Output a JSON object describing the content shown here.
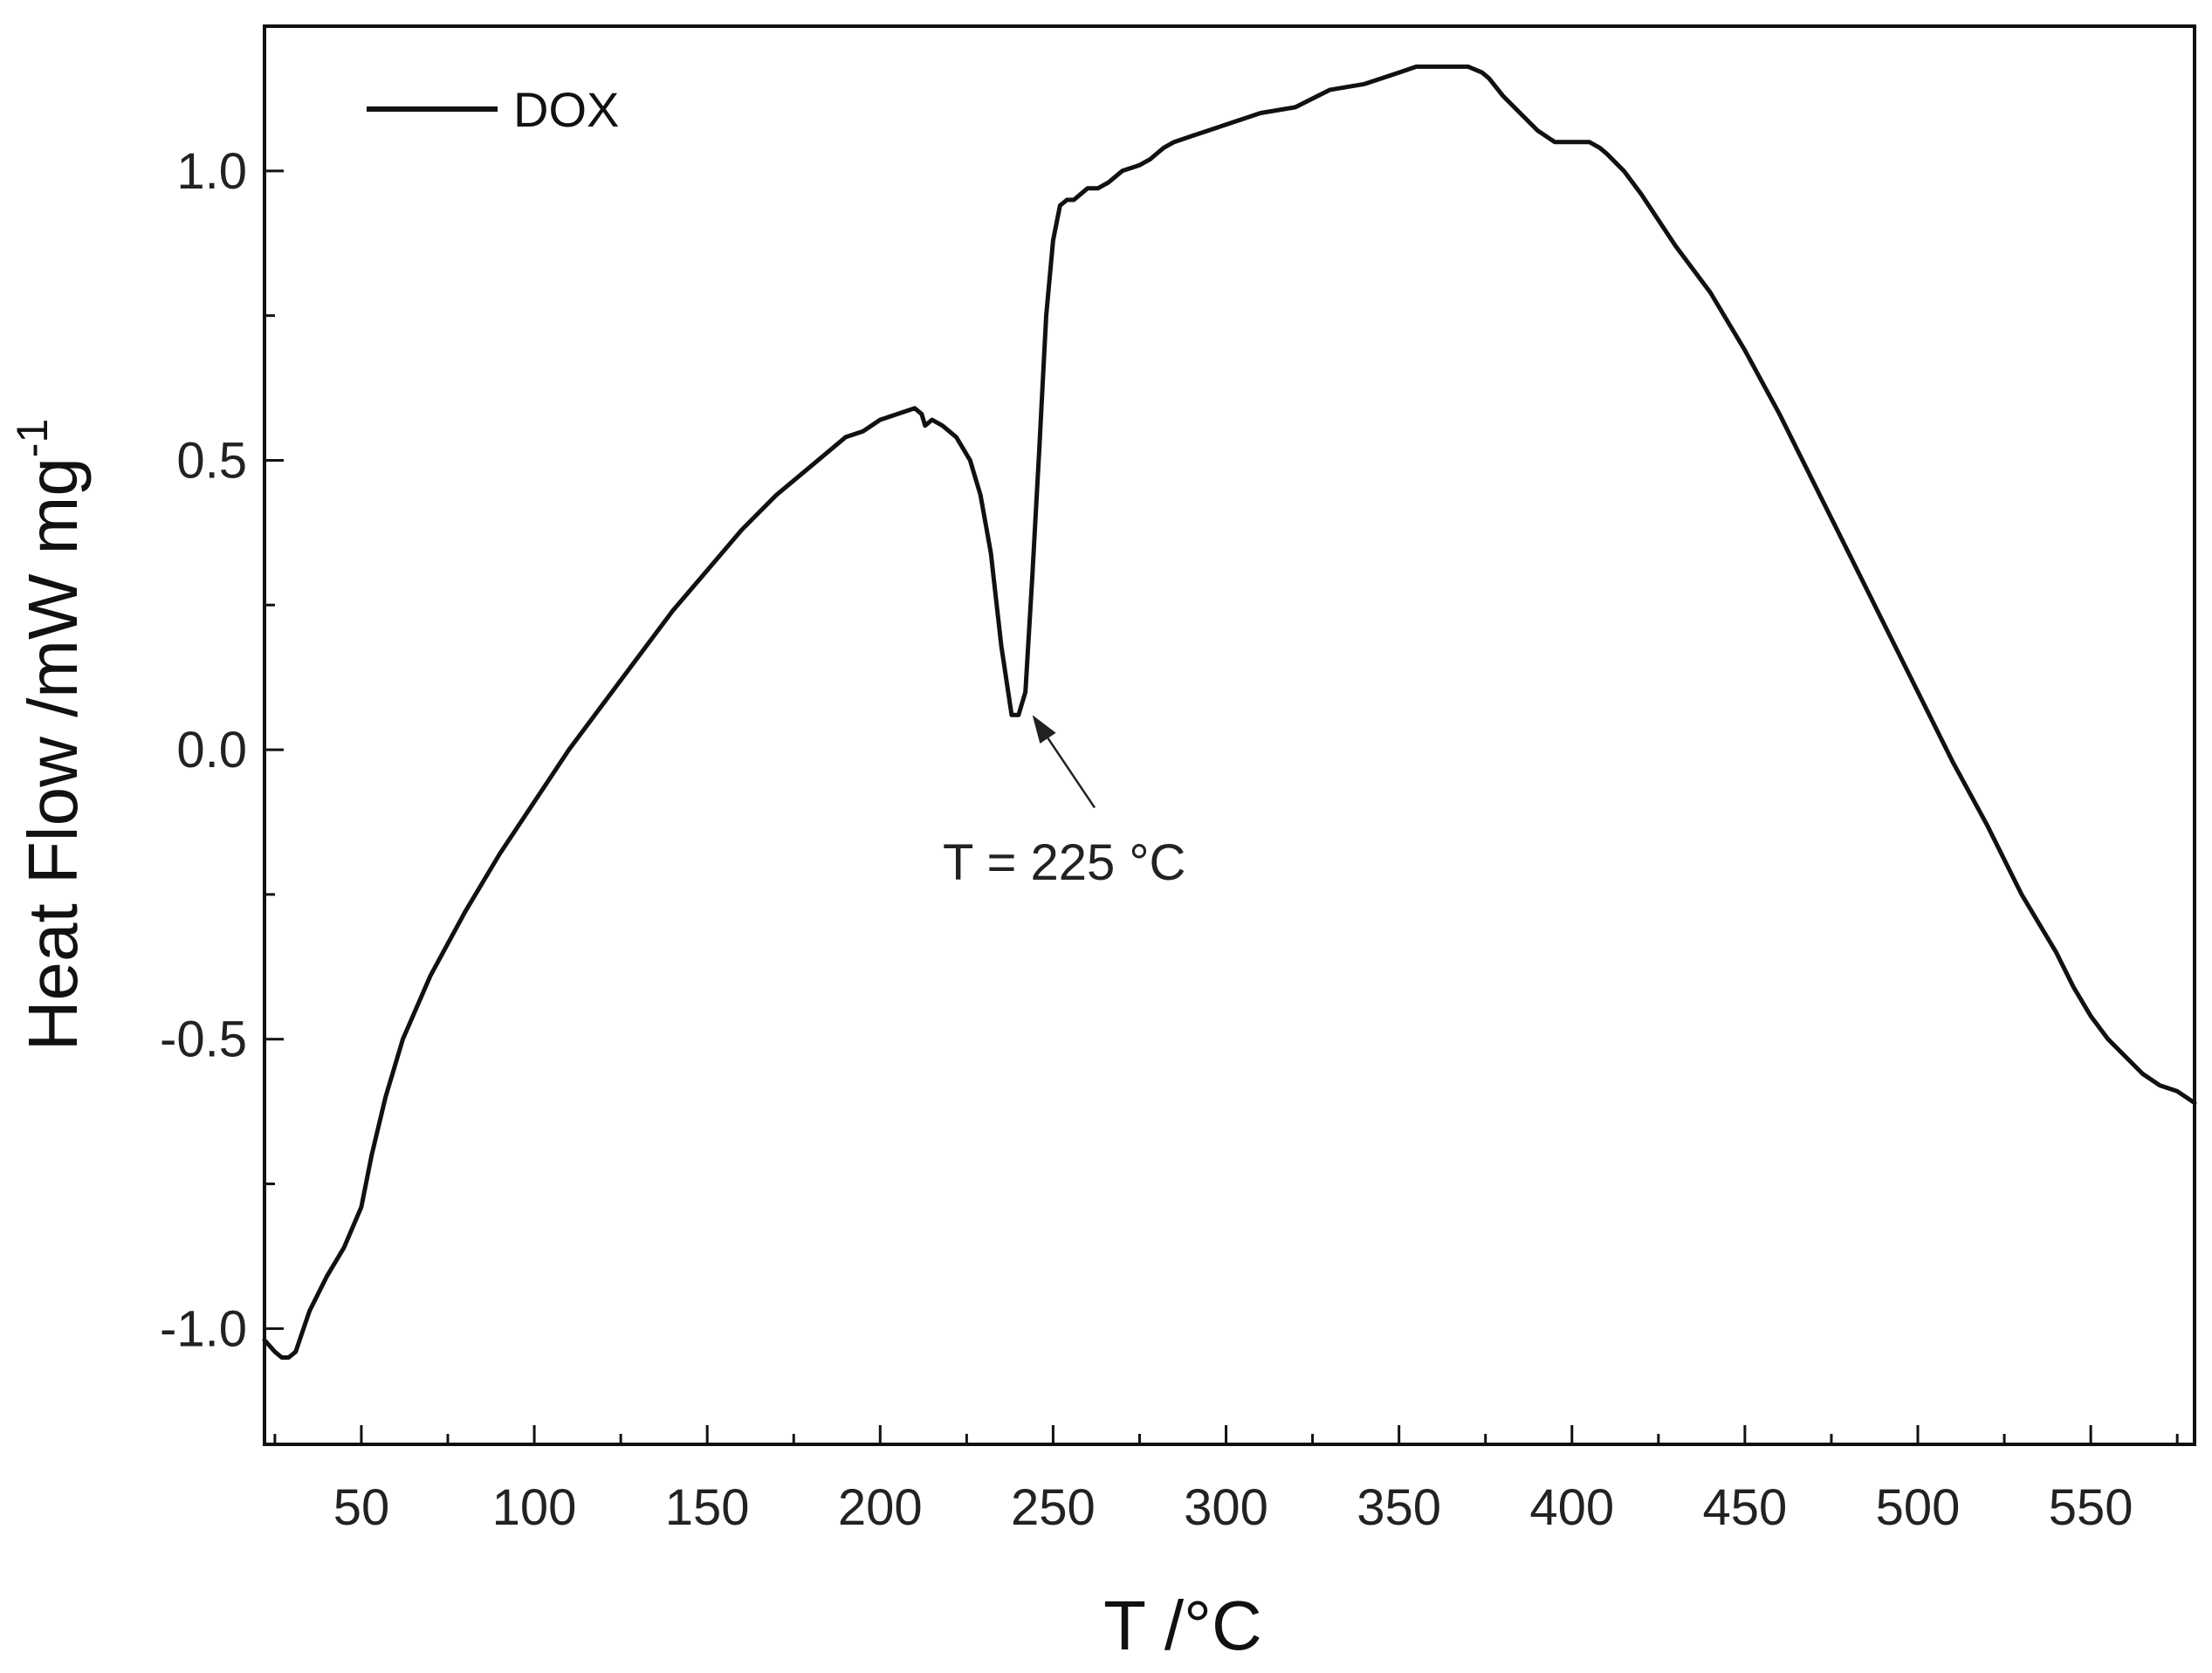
{
  "chart_data": {
    "type": "line",
    "title": "",
    "xlabel": "T /°C",
    "ylabel": "Heat Flow /mW mg",
    "ylabel_superscript": "-1",
    "xlim": [
      22,
      580
    ],
    "ylim": [
      -1.2,
      1.25
    ],
    "x_ticks": [
      50,
      100,
      150,
      200,
      250,
      300,
      350,
      400,
      450,
      500,
      550
    ],
    "x_tick_labels": [
      "50",
      "100",
      "150",
      "200",
      "250",
      "300",
      "350",
      "400",
      "450",
      "500",
      "550"
    ],
    "x_minor_ticks": [
      25,
      75,
      125,
      175,
      225,
      275,
      325,
      375,
      425,
      475,
      525,
      575
    ],
    "y_ticks": [
      -1.0,
      -0.5,
      0.0,
      0.5,
      1.0
    ],
    "y_tick_labels": [
      "-1.0",
      "-0.5",
      "0.0",
      "0.5",
      "1.0"
    ],
    "y_minor_ticks": [
      -0.75,
      -0.25,
      0.25,
      0.75
    ],
    "grid": false,
    "legend": {
      "position": "top-left",
      "entries": [
        "DOX"
      ]
    },
    "line_color": "#111111",
    "annotation": {
      "text": "T = 225 °C",
      "arrow_target": [
        244,
        0.06
      ],
      "arrow_tail": [
        262,
        -0.1
      ]
    },
    "series": [
      {
        "name": "DOX",
        "x": [
          22,
          25,
          27,
          29,
          31,
          35,
          40,
          45,
          50,
          53,
          57,
          62,
          70,
          80,
          90,
          100,
          110,
          120,
          130,
          140,
          150,
          160,
          170,
          180,
          190,
          195,
          200,
          205,
          210,
          212,
          213,
          215,
          218,
          222,
          226,
          229,
          232,
          235,
          238,
          240,
          242,
          244,
          246,
          248,
          250,
          252,
          254,
          256,
          258,
          260,
          263,
          266,
          270,
          275,
          278,
          280,
          282,
          285,
          290,
          300,
          310,
          320,
          330,
          340,
          345,
          350,
          355,
          360,
          365,
          370,
          374,
          376,
          380,
          385,
          390,
          395,
          400,
          405,
          408,
          410,
          415,
          420,
          430,
          440,
          450,
          460,
          470,
          480,
          490,
          500,
          510,
          520,
          530,
          540,
          545,
          550,
          555,
          560,
          565,
          570,
          575,
          580
        ],
        "y": [
          -1.02,
          -1.04,
          -1.05,
          -1.05,
          -1.04,
          -0.97,
          -0.91,
          -0.86,
          -0.79,
          -0.7,
          -0.6,
          -0.5,
          -0.39,
          -0.28,
          -0.18,
          -0.09,
          0.0,
          0.08,
          0.16,
          0.24,
          0.31,
          0.38,
          0.44,
          0.49,
          0.54,
          0.55,
          0.57,
          0.58,
          0.59,
          0.58,
          0.56,
          0.57,
          0.56,
          0.54,
          0.5,
          0.44,
          0.34,
          0.18,
          0.06,
          0.06,
          0.1,
          0.3,
          0.52,
          0.75,
          0.88,
          0.94,
          0.95,
          0.95,
          0.96,
          0.97,
          0.97,
          0.98,
          1.0,
          1.01,
          1.02,
          1.03,
          1.04,
          1.05,
          1.06,
          1.08,
          1.1,
          1.11,
          1.14,
          1.15,
          1.16,
          1.17,
          1.18,
          1.18,
          1.18,
          1.18,
          1.17,
          1.16,
          1.13,
          1.1,
          1.07,
          1.05,
          1.05,
          1.05,
          1.04,
          1.03,
          1.0,
          0.96,
          0.87,
          0.79,
          0.69,
          0.58,
          0.46,
          0.34,
          0.22,
          0.1,
          -0.02,
          -0.13,
          -0.25,
          -0.35,
          -0.41,
          -0.46,
          -0.5,
          -0.53,
          -0.56,
          -0.58,
          -0.59,
          -0.61
        ]
      }
    ]
  }
}
